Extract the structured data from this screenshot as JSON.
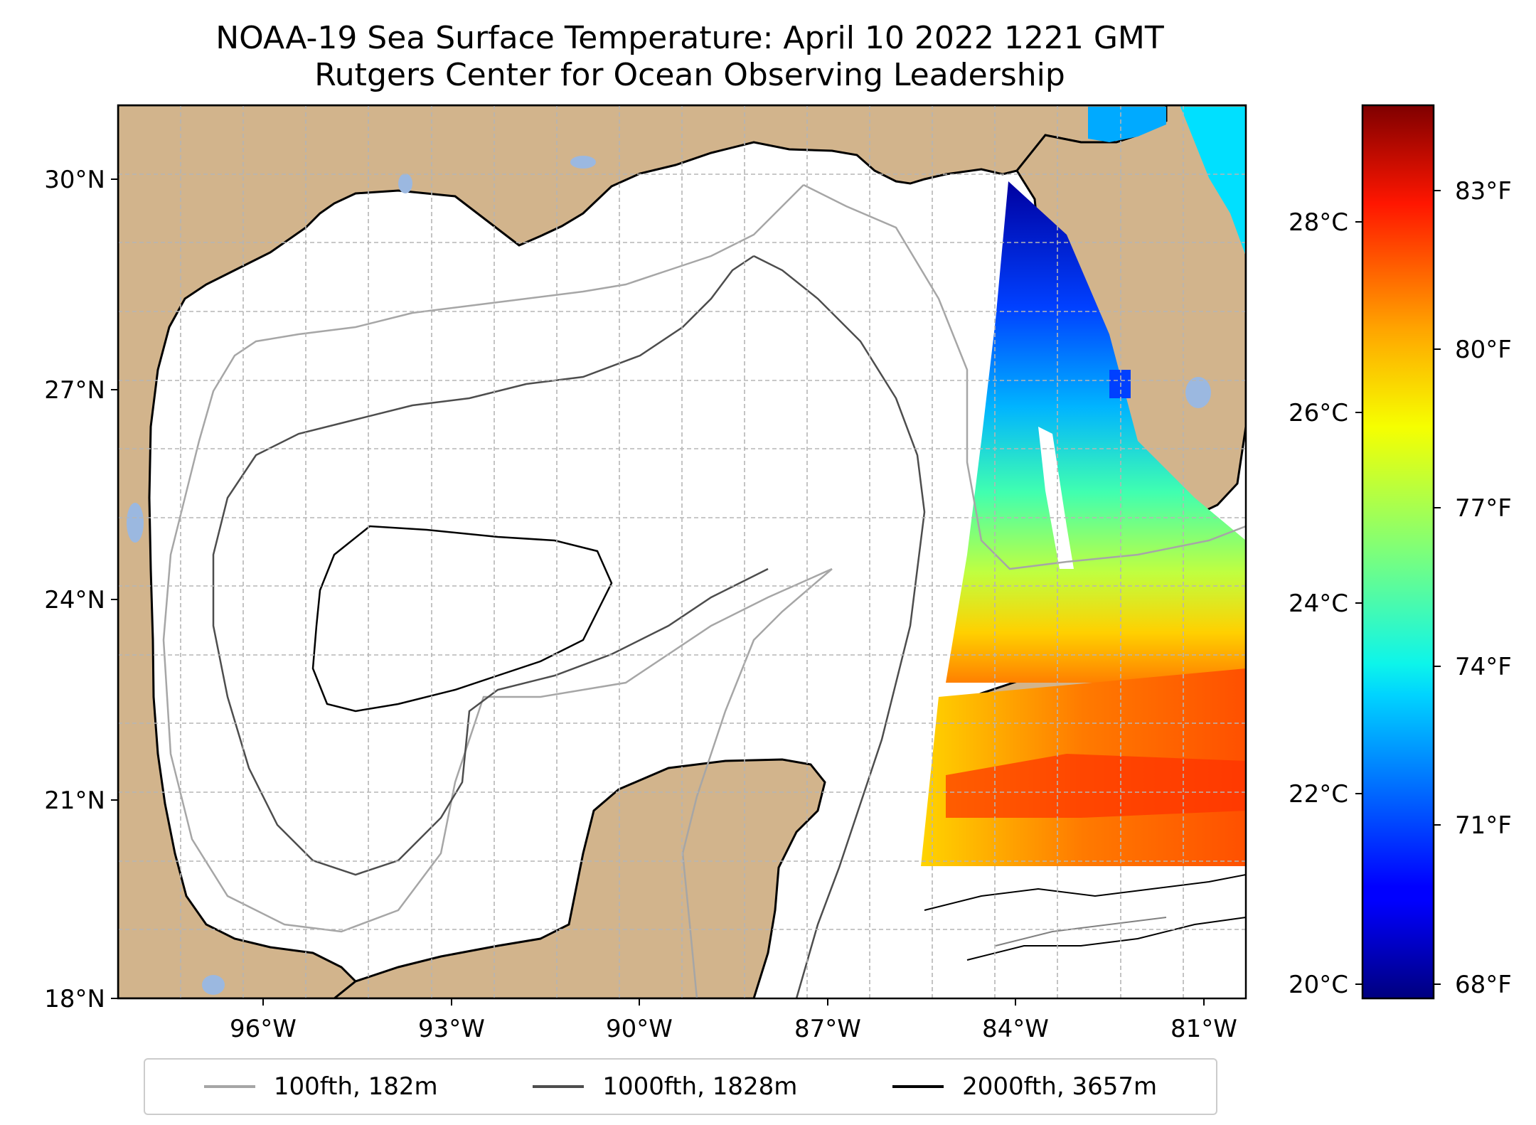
{
  "title": {
    "line1": "NOAA-19 Sea Surface Temperature: April 10 2022 1221 GMT",
    "line2": "Rutgers Center for Ocean Observing Leadership"
  },
  "map": {
    "region": "Gulf of Mexico",
    "lon_range": [
      -98.0,
      -80.0
    ],
    "lat_range": [
      18.0,
      31.0
    ],
    "lon_ticks": [
      {
        "value": -96,
        "label": "96°W"
      },
      {
        "value": -93,
        "label": "93°W"
      },
      {
        "value": -90,
        "label": "90°W"
      },
      {
        "value": -87,
        "label": "87°W"
      },
      {
        "value": -84,
        "label": "84°W"
      },
      {
        "value": -81,
        "label": "81°W"
      }
    ],
    "lat_ticks": [
      {
        "value": 18,
        "label": "18°N"
      },
      {
        "value": 21,
        "label": "21°N"
      },
      {
        "value": 24,
        "label": "24°N"
      },
      {
        "value": 27,
        "label": "27°N"
      },
      {
        "value": 30,
        "label": "30°N"
      }
    ],
    "grid": "dashed, 1° spacing",
    "colors": {
      "land": "#d2b48c",
      "ocean_no_data": "#ffffff",
      "lakes": "#9bb8e0",
      "coastline": "#000000"
    }
  },
  "colorbar": {
    "colormap": "jet",
    "celsius_range": [
      19.8,
      29.5
    ],
    "celsius_ticks": [
      {
        "value": 20,
        "label": "20°C"
      },
      {
        "value": 22,
        "label": "22°C"
      },
      {
        "value": 24,
        "label": "24°C"
      },
      {
        "value": 26,
        "label": "26°C"
      },
      {
        "value": 28,
        "label": "28°C"
      }
    ],
    "fahrenheit_ticks": [
      {
        "value": 68,
        "label": "68°F"
      },
      {
        "value": 71,
        "label": "71°F"
      },
      {
        "value": 74,
        "label": "74°F"
      },
      {
        "value": 77,
        "label": "77°F"
      },
      {
        "value": 80,
        "label": "80°F"
      },
      {
        "value": 83,
        "label": "83°F"
      }
    ]
  },
  "legend": {
    "entries": [
      {
        "label": "100fth, 182m",
        "color": "#a6a6a6"
      },
      {
        "label": "1000fth, 1828m",
        "color": "#4d4d4d"
      },
      {
        "label": "2000fth, 3657m",
        "color": "#000000"
      }
    ]
  }
}
